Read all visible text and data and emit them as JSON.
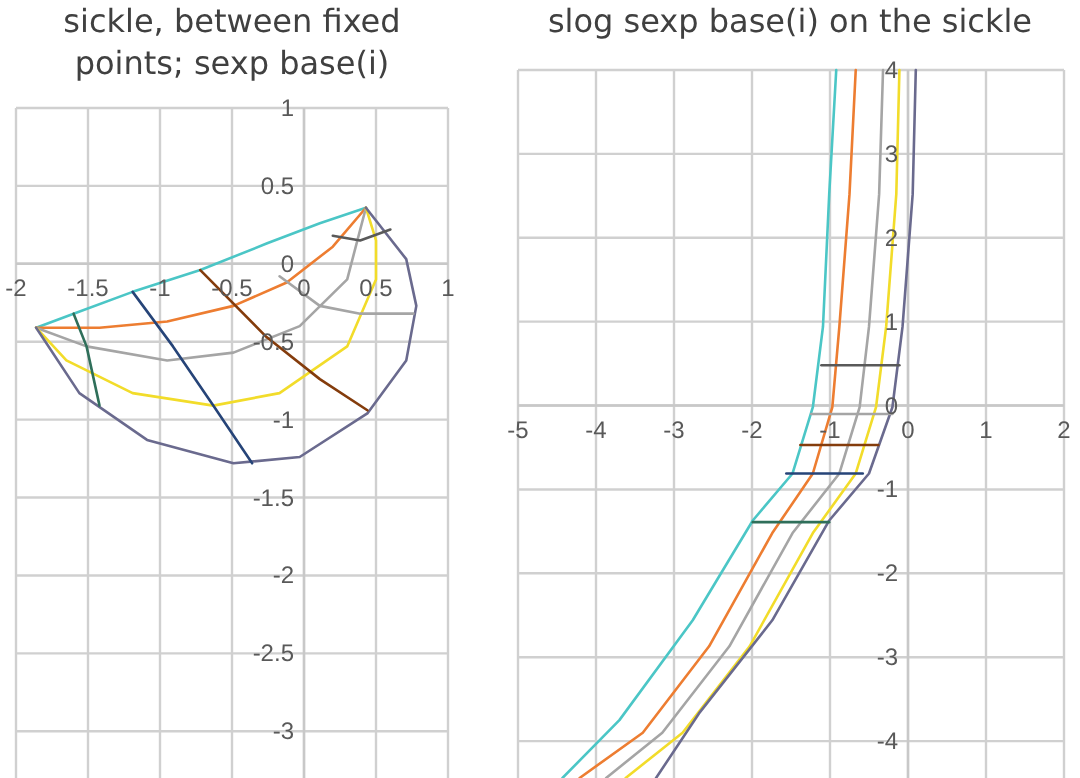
{
  "chart_data": [
    {
      "type": "line",
      "title": "sickle, between fixed points; sexp base(i)",
      "xlim": [
        -2,
        1
      ],
      "ylim": [
        -3.3,
        1
      ],
      "xticks": [
        -2,
        -1.5,
        -1,
        -0.5,
        0,
        0.5,
        1
      ],
      "yticks": [
        -3,
        -2.5,
        -2,
        -1.5,
        -1,
        -0.5,
        0,
        0.5,
        1
      ],
      "grid": true,
      "series": [
        {
          "color": "#4bc6c6",
          "x": [
            -1.86,
            -1.6,
            -1.19,
            -0.72,
            -0.26,
            0.11,
            0.43
          ],
          "values": [
            -0.41,
            -0.32,
            -0.18,
            -0.04,
            0.13,
            0.26,
            0.36
          ]
        },
        {
          "color": "#ed7d31",
          "x": [
            -1.86,
            -1.42,
            -0.95,
            -0.49,
            -0.12,
            0.2,
            0.43
          ],
          "values": [
            -0.41,
            -0.41,
            -0.37,
            -0.27,
            -0.12,
            0.11,
            0.36
          ]
        },
        {
          "color": "#a5a5a5",
          "x": [
            -1.86,
            -1.51,
            -0.95,
            -0.49,
            -0.03,
            0.3,
            0.43
          ],
          "values": [
            -0.41,
            -0.53,
            -0.62,
            -0.57,
            -0.4,
            -0.1,
            0.36
          ]
        },
        {
          "color": "#f2dc2a",
          "x": [
            -1.86,
            -1.65,
            -1.19,
            -0.63,
            -0.17,
            0.3,
            0.5,
            0.5,
            0.43
          ],
          "values": [
            -0.41,
            -0.62,
            -0.83,
            -0.91,
            -0.83,
            -0.53,
            -0.1,
            0.15,
            0.36
          ]
        },
        {
          "color": "#6a6a8e",
          "x": [
            -1.86,
            -1.56,
            -1.09,
            -0.49,
            -0.03,
            0.44,
            0.71,
            0.78,
            0.71,
            0.43
          ],
          "values": [
            -0.41,
            -0.83,
            -1.13,
            -1.28,
            -1.24,
            -0.96,
            -0.62,
            -0.27,
            0.03,
            0.36
          ]
        },
        {
          "color": "#595959",
          "x": [
            0.2,
            0.39,
            0.6
          ],
          "values": [
            0.18,
            0.15,
            0.22
          ]
        },
        {
          "color": "#a5a5a5",
          "x": [
            -0.17,
            0.11,
            0.39,
            0.76
          ],
          "values": [
            -0.08,
            -0.27,
            -0.32,
            -0.32
          ]
        },
        {
          "color": "#843c0c",
          "x": [
            -0.72,
            -0.26,
            0.11,
            0.44
          ],
          "values": [
            -0.04,
            -0.47,
            -0.74,
            -0.94
          ]
        },
        {
          "color": "#264478",
          "x": [
            -1.19,
            -0.91,
            -0.63,
            -0.36
          ],
          "values": [
            -0.18,
            -0.53,
            -0.91,
            -1.28
          ]
        },
        {
          "color": "#2f6f5a",
          "x": [
            -1.6,
            -1.51,
            -1.42
          ],
          "values": [
            -0.32,
            -0.53,
            -0.91
          ]
        }
      ]
    },
    {
      "type": "line",
      "title": "slog sexp base(i) on the sickle",
      "xlim": [
        -5,
        2
      ],
      "ylim": [
        -4.44,
        4
      ],
      "xticks": [
        -5,
        -4,
        -3,
        -2,
        -1,
        0,
        1,
        2
      ],
      "yticks": [
        -4,
        -3,
        -2,
        -1,
        0,
        1,
        2,
        3,
        4
      ],
      "grid": true,
      "series": [
        {
          "color": "#4bc6c6",
          "x": [
            -0.92,
            -1.01,
            -1.09,
            -1.22,
            -1.48,
            -1.99,
            -2.76,
            -3.7,
            -4.43
          ],
          "values": [
            4,
            2.52,
            0.94,
            -0.02,
            -0.81,
            -1.37,
            -2.56,
            -3.75,
            -4.44
          ]
        },
        {
          "color": "#ed7d31",
          "x": [
            -0.67,
            -0.75,
            -0.88,
            -0.97,
            -1.22,
            -1.74,
            -2.55,
            -3.4,
            -4.21
          ],
          "values": [
            4,
            2.52,
            0.94,
            -0.02,
            -0.81,
            -1.52,
            -2.87,
            -3.9,
            -4.44
          ]
        },
        {
          "color": "#a5a5a5",
          "x": [
            -0.32,
            -0.37,
            -0.5,
            -0.62,
            -0.88,
            -1.48,
            -2.29,
            -3.15,
            -3.87
          ],
          "values": [
            4,
            2.52,
            0.94,
            -0.02,
            -0.81,
            -1.52,
            -2.87,
            -3.9,
            -4.44
          ]
        },
        {
          "color": "#f2dc2a",
          "x": [
            -0.11,
            -0.15,
            -0.28,
            -0.41,
            -0.67,
            -1.22,
            -2.03,
            -2.89,
            -3.62
          ],
          "values": [
            4,
            2.52,
            0.94,
            -0.02,
            -0.81,
            -1.52,
            -2.87,
            -3.9,
            -4.44
          ]
        },
        {
          "color": "#6a6a8e",
          "x": [
            0.1,
            0.06,
            -0.07,
            -0.2,
            -0.5,
            -1.01,
            -1.74,
            -2.68,
            -3.23
          ],
          "values": [
            4,
            2.52,
            0.94,
            -0.02,
            -0.81,
            -1.37,
            -2.56,
            -3.67,
            -4.44
          ]
        },
        {
          "color": "#595959",
          "x": [
            -1.11,
            -0.11
          ],
          "values": [
            0.48,
            0.48
          ]
        },
        {
          "color": "#a5a5a5",
          "x": [
            -1.24,
            -0.2
          ],
          "values": [
            -0.1,
            -0.1
          ]
        },
        {
          "color": "#843c0c",
          "x": [
            -1.38,
            -0.38
          ],
          "values": [
            -0.47,
            -0.47
          ]
        },
        {
          "color": "#264478",
          "x": [
            -1.56,
            -0.58
          ],
          "values": [
            -0.81,
            -0.81
          ]
        },
        {
          "color": "#2f6f5a",
          "x": [
            -1.99,
            -1.01
          ],
          "values": [
            -1.39,
            -1.39
          ]
        }
      ]
    }
  ]
}
